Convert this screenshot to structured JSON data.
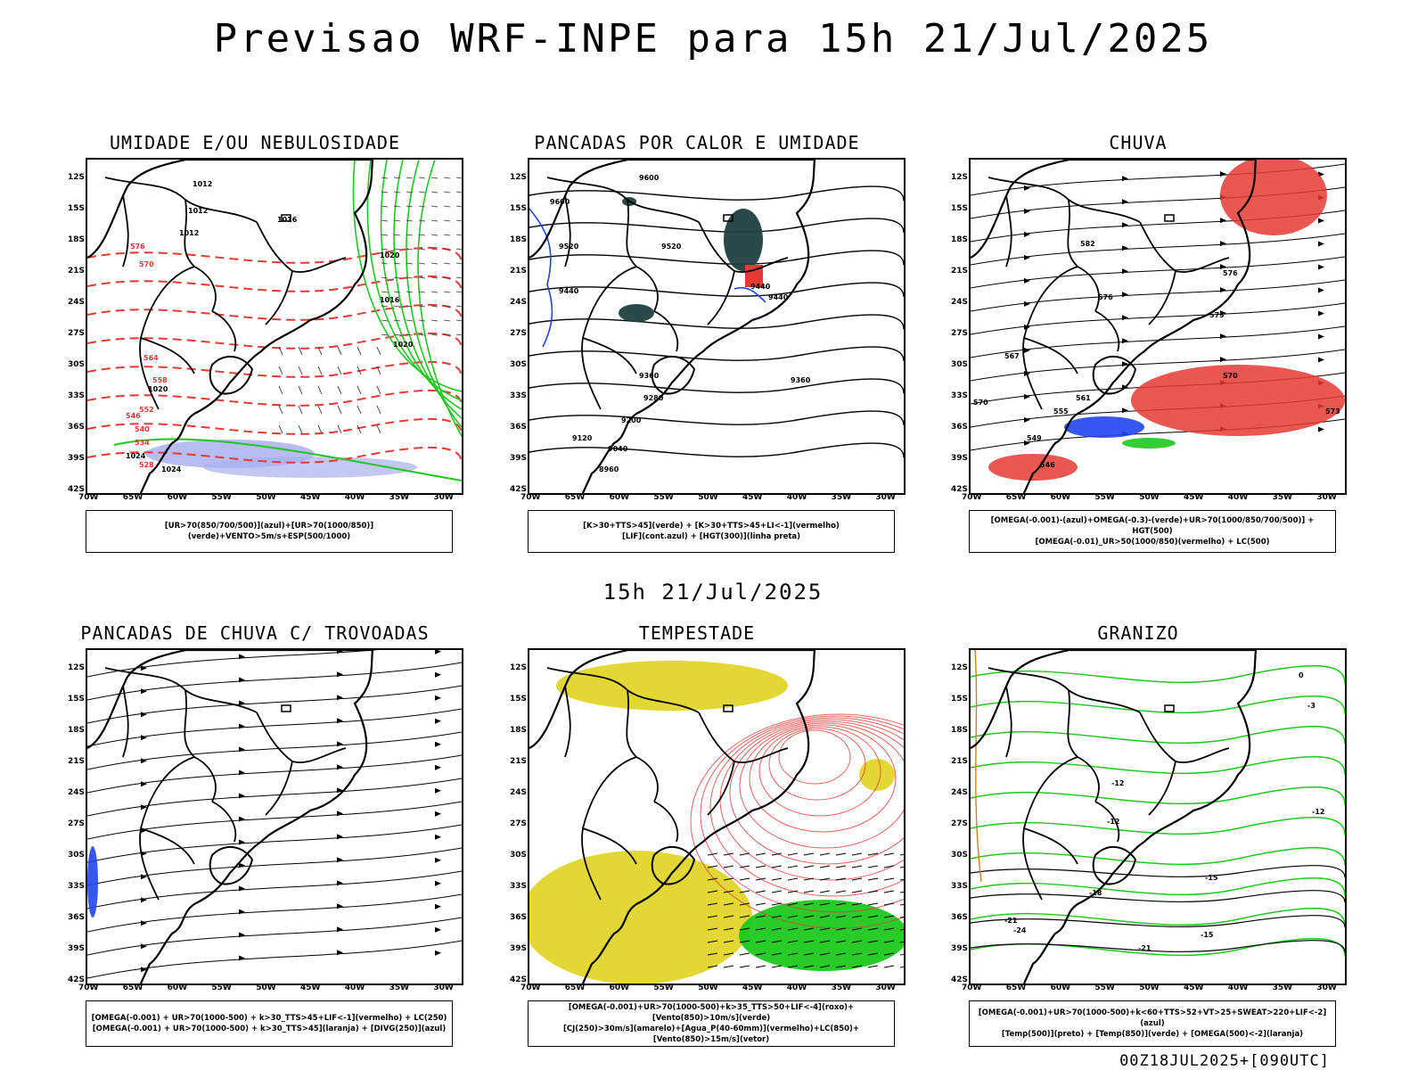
{
  "title": "Previsao WRF-INPE  para 15h 21/Jul/2025",
  "mid_title": "15h 21/Jul/2025",
  "footer": "00Z18JUL2025+[090UTC]",
  "lat_labels": [
    "12S",
    "15S",
    "18S",
    "21S",
    "24S",
    "27S",
    "30S",
    "33S",
    "36S",
    "39S",
    "42S"
  ],
  "lon_labels": [
    "70W",
    "65W",
    "60W",
    "55W",
    "50W",
    "45W",
    "40W",
    "35W",
    "30W"
  ],
  "panels": [
    {
      "title": "UMIDADE E/OU NEBULOSIDADE",
      "legend": [
        "[UR>70(850/700/500)](azul)+[UR>70(1000/850)](verde)+VENTO>5m/s+ESP(500/1000)"
      ]
    },
    {
      "title": "PANCADAS POR CALOR E UMIDADE",
      "legend": [
        "[K>30+TTS>45](verde) + [K>30+TTS>45+LI<-1](vermelho)",
        "[LIF](cont.azul) + [HGT(300)](linha preta)"
      ]
    },
    {
      "title": "CHUVA",
      "legend": [
        "[OMEGA(-0.001)-(azul)+OMEGA(-0.3)-(verde)+UR>70(1000/850/700/500)] + HGT(500)",
        "[OMEGA(-0.01)_UR>50(1000/850)(vermelho) + LC(500)"
      ]
    },
    {
      "title": "PANCADAS DE CHUVA C/ TROVOADAS",
      "legend": [
        "[OMEGA(-0.001) + UR>70(1000-500) + k>30_TTS>45+LIF<-1](vermelho) + LC(250)",
        "[OMEGA(-0.001) + UR>70(1000-500) + k>30_TTS>45](laranja) + [DIVG(250)](azul)"
      ]
    },
    {
      "title": "TEMPESTADE",
      "legend": [
        "[OMEGA(-0.001)+UR>70(1000-500)+k>35_TTS>50+LIF<-4](roxo)+[Vento(850)>10m/s](verde)",
        "[CJ(250)>30m/s](amarelo)+[Agua_P(40-60mm)](vermelho)+LC(850)+[Vento(850)>15m/s](vetor)"
      ]
    },
    {
      "title": "GRANIZO",
      "legend": [
        "[OMEGA(-0.001)+UR>70(1000-500)+k<60+TTS>52+VT>25+SWEAT>220+LIF<-2](azul)",
        "[Temp(500)](preto) + [Temp(850)](verde) + [OMEGA(500)<-2](laranja)"
      ]
    }
  ],
  "contour_labels": {
    "p1": [
      "1012",
      "1012",
      "1012",
      "1016",
      "1020",
      "1016",
      "1020",
      "1020",
      "1024",
      "1024",
      "576",
      "570",
      "564",
      "558",
      "552",
      "546",
      "540",
      "534",
      "528"
    ],
    "p2": [
      "9600",
      "9600",
      "9520",
      "9520",
      "9440",
      "9440",
      "9440",
      "9360",
      "9360",
      "9280",
      "9200",
      "9120",
      "9040",
      "8960"
    ],
    "p3": [
      "582",
      "576",
      "576",
      "573",
      "570",
      "567",
      "561",
      "555",
      "549",
      "546",
      "570",
      "573"
    ],
    "p6": [
      "0",
      "-3",
      "-12",
      "-12",
      "-12",
      "-15",
      "-18",
      "-21",
      "-24",
      "-21",
      "-15"
    ]
  },
  "colors": {
    "red": "#e53935",
    "green": "#1ec81e",
    "blue": "#2244ee",
    "lavender": "#aab0ee",
    "yellow": "#e2d52a",
    "darkteal": "#1f3f3f"
  }
}
